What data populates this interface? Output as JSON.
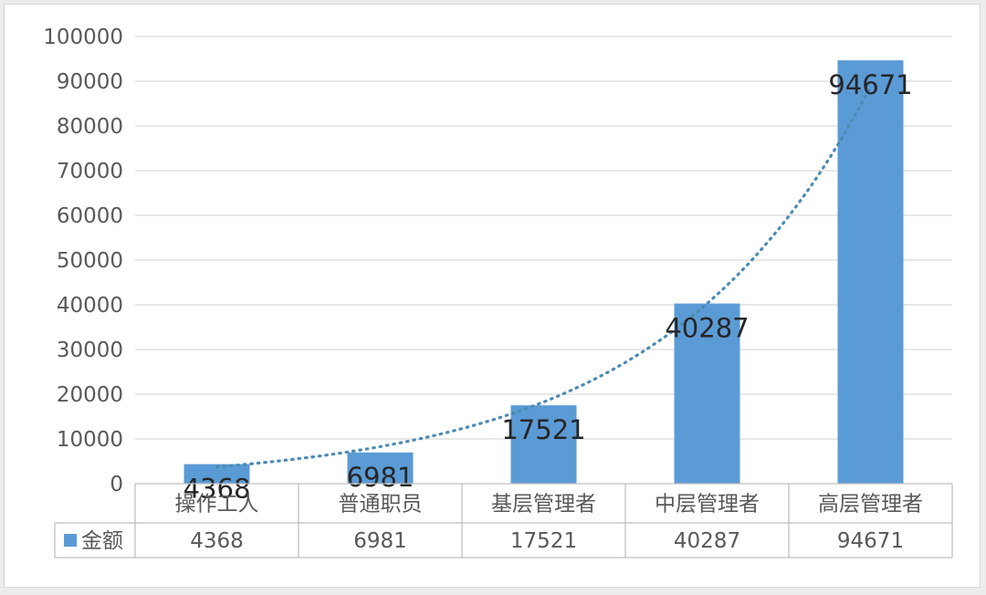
{
  "chart_data": {
    "type": "bar",
    "categories": [
      "操作工人",
      "普通职员",
      "基层管理者",
      "中层管理者",
      "高层管理者"
    ],
    "series": [
      {
        "name": "金额",
        "values": [
          4368,
          6981,
          17521,
          40287,
          94671
        ]
      }
    ],
    "ylim": [
      0,
      100000
    ],
    "yticks": [
      0,
      10000,
      20000,
      30000,
      40000,
      50000,
      60000,
      70000,
      80000,
      90000,
      100000
    ],
    "grid": true,
    "data_labels": true,
    "trendline": "exponential",
    "data_table": true,
    "legend_placement": "data-table",
    "colors": {
      "bar": "#5b9bd5",
      "trendline": "#4a8bb3",
      "grid": "#d9d9d9",
      "text": "#595959"
    }
  }
}
